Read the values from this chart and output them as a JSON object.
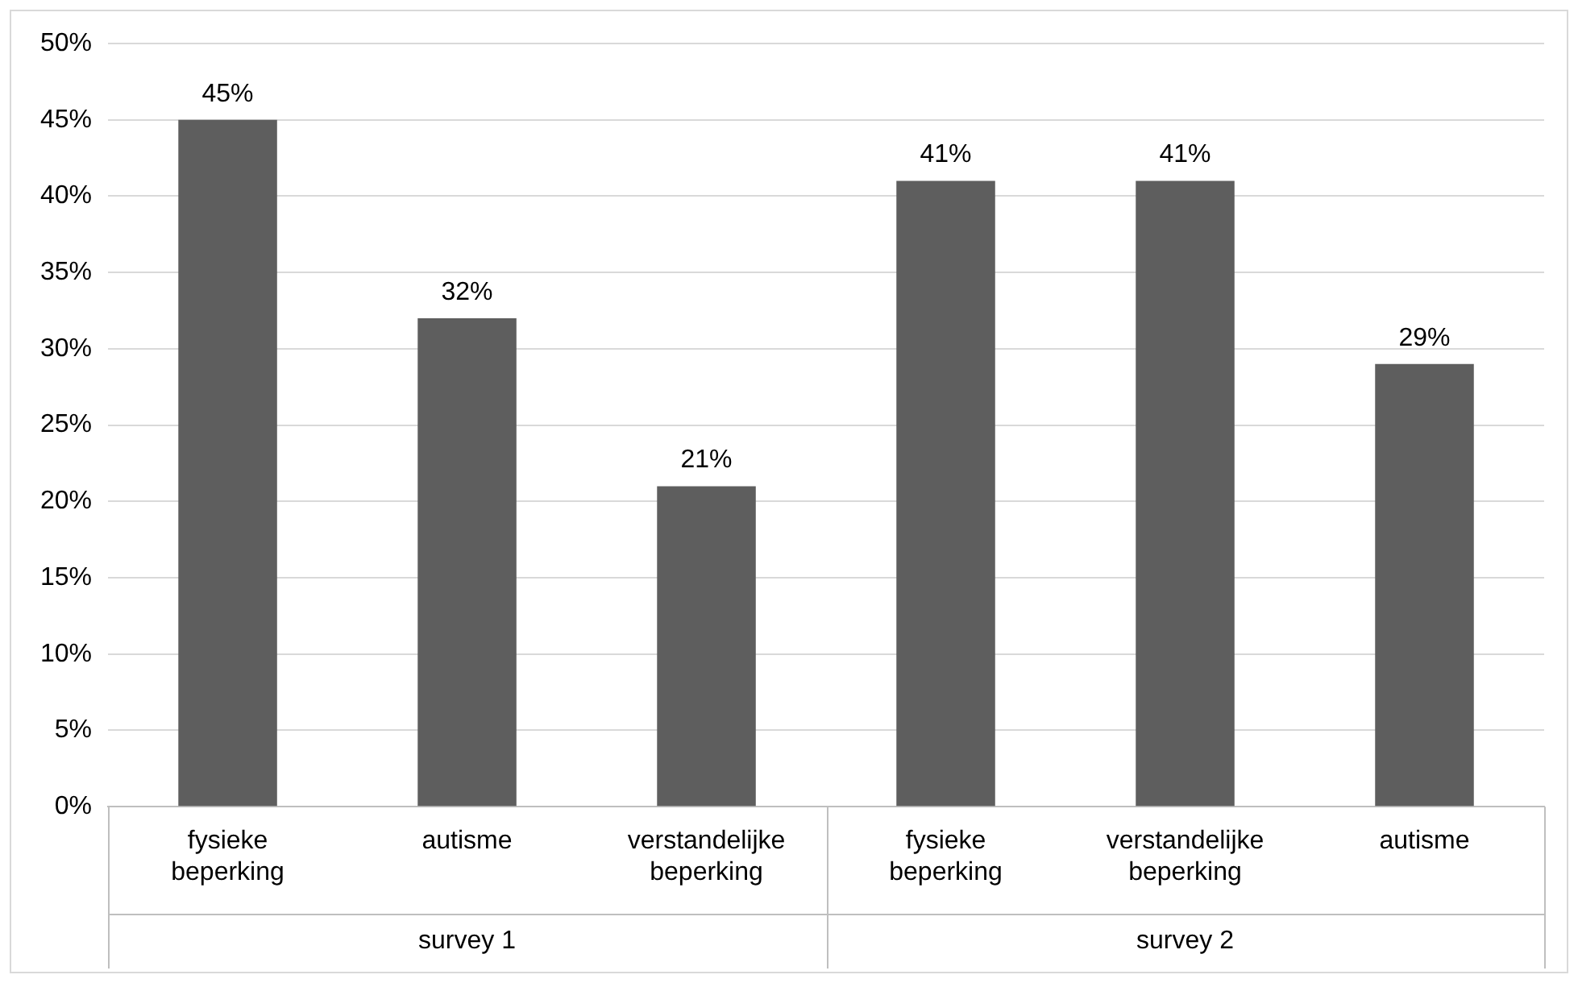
{
  "chart_data": {
    "type": "bar",
    "categories": [
      "fysieke beperking",
      "autisme",
      "verstandelijke beperking",
      "fysieke beperking",
      "verstandelijke beperking",
      "autisme"
    ],
    "values": [
      45,
      32,
      21,
      41,
      41,
      29
    ],
    "value_labels": [
      "45%",
      "32%",
      "21%",
      "41%",
      "41%",
      "29%"
    ],
    "color": "#5e5e5e",
    "ylim": [
      0,
      50
    ],
    "yticks": [
      {
        "value": 0,
        "label": "0%"
      },
      {
        "value": 5,
        "label": "5%"
      },
      {
        "value": 10,
        "label": "10%"
      },
      {
        "value": 15,
        "label": "15%"
      },
      {
        "value": 20,
        "label": "20%"
      },
      {
        "value": 25,
        "label": "25%"
      },
      {
        "value": 30,
        "label": "30%"
      },
      {
        "value": 35,
        "label": "35%"
      },
      {
        "value": 40,
        "label": "40%"
      },
      {
        "value": 45,
        "label": "45%"
      },
      {
        "value": 50,
        "label": "50%"
      }
    ],
    "grid": "y",
    "legend": false,
    "annotations": [
      "survey 1",
      "survey 2"
    ]
  }
}
